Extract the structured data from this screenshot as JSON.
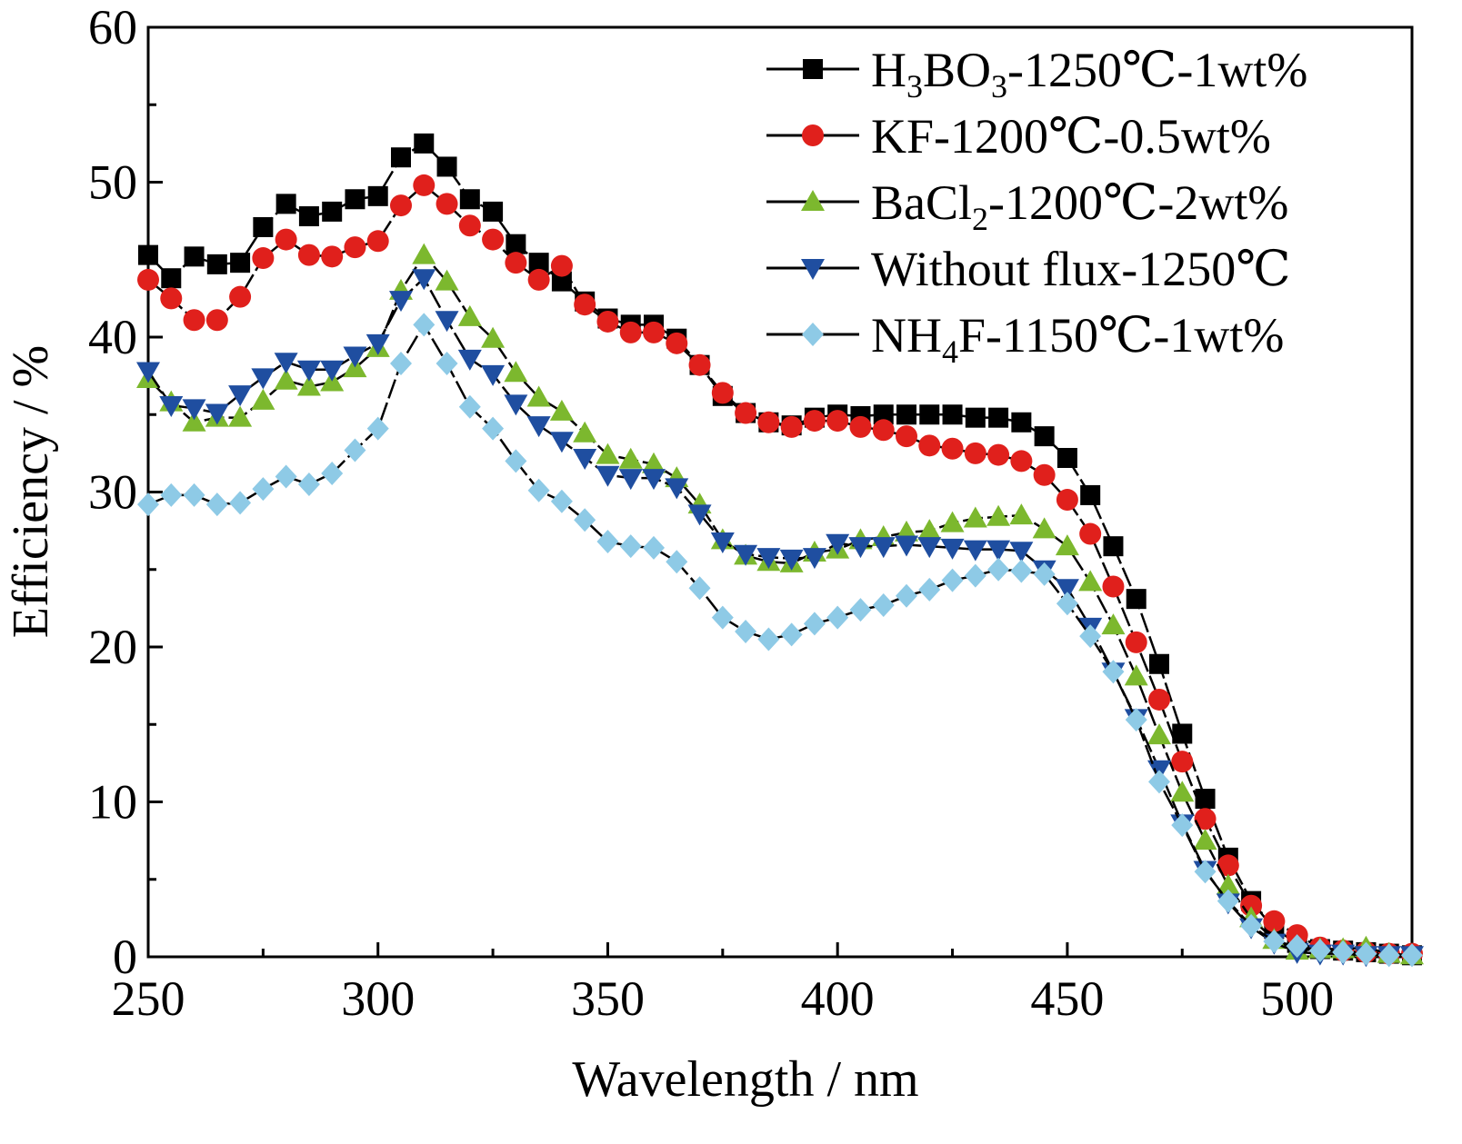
{
  "chart_data": {
    "type": "line",
    "xlabel": "Wavelength / nm",
    "ylabel": "Efficiency / %",
    "xlim": [
      250,
      525
    ],
    "ylim": [
      0,
      60
    ],
    "xticks": [
      "250",
      "300",
      "350",
      "400",
      "450",
      "500"
    ],
    "yticks": [
      "0",
      "10",
      "20",
      "30",
      "40",
      "50",
      "60"
    ],
    "legend_position": "top-right",
    "x": [
      250,
      255,
      260,
      265,
      270,
      275,
      280,
      285,
      290,
      295,
      300,
      305,
      310,
      315,
      320,
      325,
      330,
      335,
      340,
      345,
      350,
      355,
      360,
      365,
      370,
      375,
      380,
      385,
      390,
      395,
      400,
      405,
      410,
      415,
      420,
      425,
      430,
      435,
      440,
      445,
      450,
      455,
      460,
      465,
      470,
      475,
      480,
      485,
      490,
      495,
      500,
      505,
      510,
      515,
      520,
      525
    ],
    "series": [
      {
        "name": "H3BO3-1250℃-1wt%",
        "legend": {
          "parts": [
            [
              "H",
              ""
            ],
            [
              "3",
              "sub"
            ],
            [
              "BO",
              ""
            ],
            [
              "3",
              "sub"
            ],
            [
              "-1250℃-1wt%",
              ""
            ]
          ]
        },
        "marker": "square",
        "color": "#000000",
        "values": [
          45.3,
          43.8,
          45.2,
          44.7,
          44.8,
          47.1,
          48.6,
          47.8,
          48.1,
          48.9,
          49.1,
          51.6,
          52.5,
          51.0,
          48.9,
          48.1,
          46.0,
          44.8,
          43.6,
          42.3,
          41.2,
          40.8,
          40.8,
          39.9,
          38.2,
          36.2,
          35.1,
          34.5,
          34.3,
          34.8,
          35.0,
          34.9,
          35.0,
          35.0,
          35.0,
          35.0,
          34.8,
          34.8,
          34.5,
          33.6,
          32.2,
          29.8,
          26.5,
          23.1,
          18.9,
          14.4,
          10.2,
          6.4,
          3.6,
          1.8,
          0.9,
          0.5,
          0.4,
          0.3,
          0.2,
          0.1
        ]
      },
      {
        "name": "KF-1200℃-0.5wt%",
        "legend": {
          "parts": [
            [
              "KF-1200℃-0.5wt%",
              ""
            ]
          ]
        },
        "marker": "circle",
        "color": "#e0201c",
        "values": [
          43.7,
          42.5,
          41.1,
          41.1,
          42.6,
          45.1,
          46.3,
          45.3,
          45.2,
          45.8,
          46.2,
          48.5,
          49.8,
          48.6,
          47.2,
          46.3,
          44.8,
          43.7,
          44.6,
          42.1,
          41.0,
          40.3,
          40.3,
          39.6,
          38.2,
          36.4,
          35.1,
          34.5,
          34.2,
          34.6,
          34.6,
          34.2,
          34.0,
          33.6,
          33.0,
          32.8,
          32.5,
          32.4,
          32.0,
          31.1,
          29.5,
          27.3,
          23.9,
          20.3,
          16.6,
          12.6,
          8.9,
          5.9,
          3.3,
          2.3,
          1.4,
          0.6,
          0.4,
          0.3,
          0.2,
          0.2
        ]
      },
      {
        "name": "BaCl2-1200℃-2wt%",
        "legend": {
          "parts": [
            [
              "BaCl",
              ""
            ],
            [
              "2",
              "sub"
            ],
            [
              "-1200℃-2wt%",
              ""
            ]
          ]
        },
        "marker": "triangle-up",
        "color": "#7cb82e",
        "values": [
          37.3,
          35.8,
          34.5,
          34.8,
          34.8,
          35.9,
          37.2,
          36.8,
          37.1,
          38.0,
          39.3,
          43.0,
          45.3,
          43.6,
          41.3,
          39.9,
          37.7,
          36.1,
          35.2,
          33.8,
          32.4,
          32.1,
          31.8,
          30.9,
          29.2,
          26.9,
          25.9,
          25.5,
          25.4,
          26.1,
          26.3,
          26.9,
          27.1,
          27.4,
          27.5,
          28.0,
          28.3,
          28.4,
          28.5,
          27.6,
          26.5,
          24.2,
          21.4,
          18.1,
          14.3,
          10.6,
          7.5,
          4.6,
          2.5,
          1.1,
          0.4,
          0.5,
          0.5,
          0.6,
          0.2,
          0.1
        ]
      },
      {
        "name": "Without flux-1250℃",
        "legend": {
          "parts": [
            [
              "Without flux-1250℃",
              ""
            ]
          ]
        },
        "marker": "triangle-down",
        "color": "#1f4ea0",
        "values": [
          37.8,
          35.6,
          35.4,
          35.1,
          36.3,
          37.4,
          38.4,
          37.9,
          37.9,
          38.8,
          39.6,
          42.4,
          43.8,
          41.1,
          38.6,
          37.6,
          35.7,
          34.3,
          33.3,
          32.2,
          31.1,
          30.9,
          30.9,
          30.3,
          28.6,
          26.8,
          26.0,
          25.8,
          25.7,
          25.8,
          26.7,
          26.5,
          26.5,
          26.6,
          26.5,
          26.4,
          26.3,
          26.3,
          26.2,
          25.0,
          23.8,
          21.3,
          18.4,
          15.4,
          12.1,
          8.6,
          5.6,
          3.5,
          1.9,
          0.9,
          0.3,
          0.2,
          0.2,
          0.1,
          0.1,
          0.1
        ]
      },
      {
        "name": "NH4F-1150℃-1wt%",
        "legend": {
          "parts": [
            [
              "NH",
              ""
            ],
            [
              "4",
              "sub"
            ],
            [
              "F-1150℃-1wt%",
              ""
            ]
          ]
        },
        "marker": "diamond",
        "color": "#8ecae6",
        "values": [
          29.2,
          29.8,
          29.8,
          29.2,
          29.3,
          30.2,
          31.0,
          30.5,
          31.2,
          32.7,
          34.1,
          38.3,
          40.8,
          38.3,
          35.5,
          34.1,
          32.0,
          30.1,
          29.4,
          28.2,
          26.8,
          26.5,
          26.4,
          25.5,
          23.8,
          21.9,
          21.0,
          20.5,
          20.8,
          21.5,
          21.9,
          22.4,
          22.7,
          23.3,
          23.7,
          24.3,
          24.6,
          25.0,
          24.9,
          24.7,
          22.8,
          20.7,
          18.4,
          15.3,
          11.3,
          8.5,
          5.5,
          3.6,
          2.0,
          1.0,
          0.7,
          0.4,
          0.3,
          0.2,
          0.1,
          0.1
        ]
      }
    ]
  }
}
